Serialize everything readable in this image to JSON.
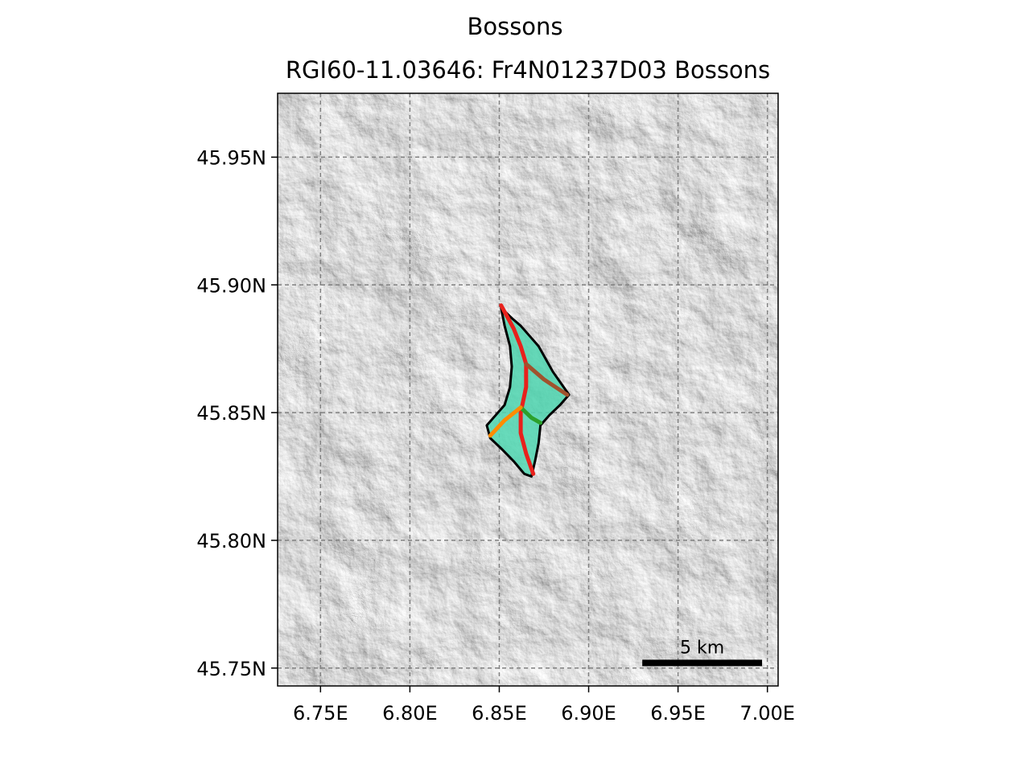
{
  "figure": {
    "suptitle": "Bossons",
    "title": "RGI60-11.03646: Fr4N01237D03 Bossons"
  },
  "map": {
    "basemap": "hillshade (grayscale)",
    "grid": true,
    "lon_range": [
      6.726,
      7.006
    ],
    "lat_range": [
      45.743,
      45.975
    ],
    "x_ticks": [
      {
        "value": 6.75,
        "label": "6.75E"
      },
      {
        "value": 6.8,
        "label": "6.80E"
      },
      {
        "value": 6.85,
        "label": "6.85E"
      },
      {
        "value": 6.9,
        "label": "6.90E"
      },
      {
        "value": 6.95,
        "label": "6.95E"
      },
      {
        "value": 7.0,
        "label": "7.00E"
      }
    ],
    "y_ticks": [
      {
        "value": 45.95,
        "label": "45.95N"
      },
      {
        "value": 45.9,
        "label": "45.90N"
      },
      {
        "value": 45.85,
        "label": "45.85N"
      },
      {
        "value": 45.8,
        "label": "45.80N"
      },
      {
        "value": 45.75,
        "label": "45.75N"
      }
    ],
    "scale_bar": {
      "label": "5 km",
      "lon_start": 6.93,
      "lon_end": 6.997,
      "lat": 45.752
    },
    "glacier_outline": {
      "color": "#000000",
      "fill": "#4fd6b0",
      "coords": [
        [
          6.851,
          45.891
        ],
        [
          6.857,
          45.887
        ],
        [
          6.862,
          45.884
        ],
        [
          6.867,
          45.88
        ],
        [
          6.872,
          45.876
        ],
        [
          6.876,
          45.871
        ],
        [
          6.88,
          45.866
        ],
        [
          6.884,
          45.862
        ],
        [
          6.889,
          45.857
        ],
        [
          6.884,
          45.853
        ],
        [
          6.878,
          45.849
        ],
        [
          6.873,
          45.845
        ],
        [
          6.872,
          45.838
        ],
        [
          6.87,
          45.831
        ],
        [
          6.868,
          45.825
        ],
        [
          6.864,
          45.826
        ],
        [
          6.858,
          45.831
        ],
        [
          6.851,
          45.836
        ],
        [
          6.845,
          45.84
        ],
        [
          6.843,
          45.845
        ],
        [
          6.848,
          45.849
        ],
        [
          6.853,
          45.853
        ],
        [
          6.856,
          45.86
        ],
        [
          6.857,
          45.868
        ],
        [
          6.856,
          45.876
        ],
        [
          6.853,
          45.884
        ],
        [
          6.851,
          45.891
        ]
      ]
    },
    "flowlines": [
      {
        "color": "#e8211c",
        "coords": [
          [
            6.851,
            45.892
          ],
          [
            6.858,
            45.883
          ],
          [
            6.862,
            45.876
          ],
          [
            6.865,
            45.869
          ],
          [
            6.865,
            45.86
          ],
          [
            6.862,
            45.85
          ],
          [
            6.862,
            45.842
          ],
          [
            6.865,
            45.834
          ],
          [
            6.869,
            45.826
          ]
        ]
      },
      {
        "color": "#a0522d",
        "coords": [
          [
            6.865,
            45.869
          ],
          [
            6.875,
            45.863
          ],
          [
            6.888,
            45.857
          ]
        ]
      },
      {
        "color": "#2ca02c",
        "coords": [
          [
            6.862,
            45.852
          ],
          [
            6.868,
            45.848
          ],
          [
            6.873,
            45.846
          ]
        ]
      },
      {
        "color": "#ff8c00",
        "coords": [
          [
            6.862,
            45.852
          ],
          [
            6.853,
            45.847
          ],
          [
            6.845,
            45.841
          ]
        ]
      }
    ]
  }
}
